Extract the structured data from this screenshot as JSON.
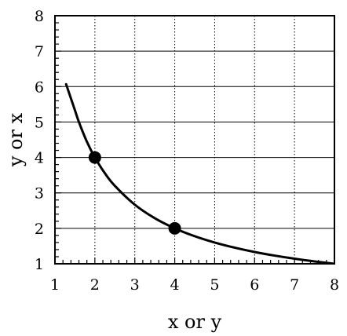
{
  "chart_data": {
    "type": "line",
    "title": "",
    "xlabel": "x or y",
    "ylabel": "y or x",
    "xlim": [
      1,
      8
    ],
    "ylim": [
      1,
      8
    ],
    "xticks": [
      "1",
      "2",
      "3",
      "4",
      "5",
      "6",
      "7",
      "8"
    ],
    "yticks": [
      "1",
      "2",
      "3",
      "4",
      "5",
      "6",
      "7",
      "8"
    ],
    "grid": {
      "vertical": "dotted",
      "horizontal": "solid"
    },
    "minor_ticks_per_unit": 5,
    "series": [
      {
        "equation": "x*y = 8",
        "x": [
          1.5,
          1.6,
          1.8,
          2,
          2.25,
          2.5,
          3,
          3.5,
          4,
          4.5,
          5,
          5.5,
          6,
          6.5,
          7,
          7.5,
          8
        ],
        "y": [
          5.333,
          5,
          4.444,
          4,
          3.556,
          3.2,
          2.667,
          2.286,
          2,
          1.778,
          1.6,
          1.455,
          1.333,
          1.231,
          1.143,
          1.067,
          1
        ],
        "color": "#000000"
      }
    ],
    "highlighted_points": [
      {
        "x": 2,
        "y": 4
      },
      {
        "x": 4,
        "y": 2
      }
    ]
  }
}
